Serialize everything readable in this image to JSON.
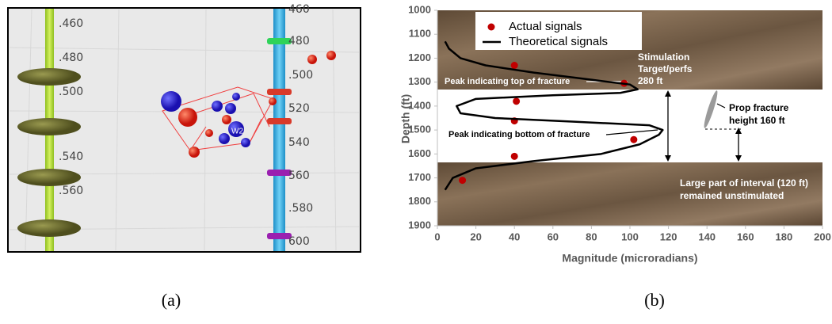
{
  "panel_a": {
    "left_well_labels": [
      ".460",
      ".480",
      ".500",
      ".540",
      ".560"
    ],
    "right_well_labels": [
      "460",
      "480",
      ".500",
      "520",
      "540",
      "560",
      ".580",
      "600"
    ],
    "event_label": "W2"
  },
  "chart_data": {
    "type": "scatter",
    "xlabel": "Magnitude (microradians)",
    "ylabel": "Depth (ft)",
    "xlim": [
      0,
      200
    ],
    "ylim": [
      1000,
      1900
    ],
    "y_inverted": true,
    "xticks": [
      0,
      20,
      40,
      60,
      80,
      100,
      120,
      140,
      160,
      180,
      200
    ],
    "yticks": [
      1000,
      1100,
      1200,
      1300,
      1400,
      1500,
      1600,
      1700,
      1800,
      1900
    ],
    "legend": "top-left",
    "series": [
      {
        "name": "Actual signals",
        "type": "scatter",
        "color": "#c00000",
        "x": [
          40,
          97,
          41,
          40,
          102,
          40,
          13
        ],
        "y": [
          1230,
          1305,
          1380,
          1462,
          1540,
          1610,
          1710
        ]
      },
      {
        "name": "Theoretical signals",
        "type": "line",
        "color": "#000000",
        "x": [
          4,
          8,
          20,
          50,
          85,
          105,
          115,
          117,
          110,
          70,
          30,
          12,
          10,
          20,
          60,
          95,
          104,
          100,
          80,
          50,
          25,
          12,
          6,
          4
        ],
        "y": [
          1750,
          1700,
          1660,
          1630,
          1600,
          1560,
          1520,
          1500,
          1480,
          1465,
          1450,
          1430,
          1400,
          1370,
          1355,
          1345,
          1330,
          1310,
          1290,
          1260,
          1230,
          1200,
          1160,
          1130
        ]
      }
    ],
    "annotations": [
      {
        "lines": [
          "Stimulation",
          "Target/perfs",
          "280 ft"
        ]
      },
      {
        "lines": [
          "Peak indicating top of fracture"
        ]
      },
      {
        "lines": [
          "Peak indicating bottom of fracture"
        ]
      },
      {
        "lines": [
          "Prop fracture",
          "height 160 ft"
        ]
      },
      {
        "lines": [
          "Large part of interval (120 ft)",
          "remained unstimulated"
        ]
      }
    ]
  },
  "captions": [
    "(a)",
    "(b)"
  ]
}
